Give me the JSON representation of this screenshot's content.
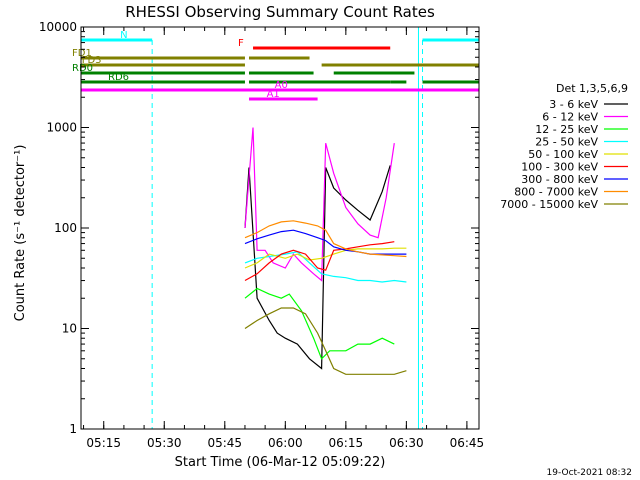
{
  "chart_data": {
    "type": "line",
    "title": "RHESSI Observing Summary Count Rates",
    "xlabel": "Start Time (06-Mar-12 05:09:22)",
    "ylabel": "Count Rate (s⁻¹ detector⁻¹)",
    "x_range": [
      "05:09:22",
      "06:48:00"
    ],
    "x_ticks": [
      "05:15",
      "05:30",
      "05:45",
      "06:00",
      "06:15",
      "06:30",
      "06:45"
    ],
    "y_scale": "log",
    "ylim": [
      1,
      10000
    ],
    "y_ticks": [
      "1",
      "10",
      "100",
      "1000",
      "10000"
    ],
    "grid": false,
    "legend_title": "Det 1,3,5,6,9",
    "legend_position": "right",
    "footer": "19-Oct-2021 08:32",
    "series": [
      {
        "name": "3 - 6 keV",
        "color": "#000000",
        "points": [
          [
            "05:50",
            100
          ],
          [
            "05:51",
            400
          ],
          [
            "05:53",
            20
          ],
          [
            "05:56",
            12
          ],
          [
            "05:58",
            9
          ],
          [
            "06:00",
            8
          ],
          [
            "06:03",
            7
          ],
          [
            "06:06",
            5
          ],
          [
            "06:09",
            4
          ],
          [
            "06:10",
            400
          ],
          [
            "06:12",
            250
          ],
          [
            "06:15",
            190
          ],
          [
            "06:18",
            150
          ],
          [
            "06:21",
            120
          ],
          [
            "06:24",
            230
          ],
          [
            "06:26",
            420
          ]
        ]
      },
      {
        "name": "6 - 12 keV",
        "color": "#ff00ff",
        "points": [
          [
            "05:50",
            100
          ],
          [
            "05:52",
            1000
          ],
          [
            "05:53",
            60
          ],
          [
            "05:55",
            60
          ],
          [
            "05:57",
            45
          ],
          [
            "06:00",
            40
          ],
          [
            "06:02",
            55
          ],
          [
            "06:04",
            45
          ],
          [
            "06:07",
            35
          ],
          [
            "06:09",
            30
          ],
          [
            "06:10",
            700
          ],
          [
            "06:12",
            350
          ],
          [
            "06:15",
            160
          ],
          [
            "06:18",
            110
          ],
          [
            "06:21",
            85
          ],
          [
            "06:23",
            80
          ],
          [
            "06:25",
            200
          ],
          [
            "06:27",
            700
          ]
        ]
      },
      {
        "name": "12 - 25 keV",
        "color": "#00ff00",
        "points": [
          [
            "05:50",
            20
          ],
          [
            "05:53",
            25
          ],
          [
            "05:56",
            22
          ],
          [
            "05:59",
            20
          ],
          [
            "06:01",
            22
          ],
          [
            "06:04",
            15
          ],
          [
            "06:07",
            8
          ],
          [
            "06:09",
            5
          ],
          [
            "06:11",
            6
          ],
          [
            "06:15",
            6
          ],
          [
            "06:18",
            7
          ],
          [
            "06:21",
            7
          ],
          [
            "06:24",
            8
          ],
          [
            "06:27",
            7
          ]
        ]
      },
      {
        "name": "25 - 50 keV",
        "color": "#00ffff",
        "points": [
          [
            "05:50",
            45
          ],
          [
            "05:53",
            50
          ],
          [
            "05:56",
            52
          ],
          [
            "06:00",
            55
          ],
          [
            "06:03",
            58
          ],
          [
            "06:06",
            45
          ],
          [
            "06:09",
            35
          ],
          [
            "06:12",
            33
          ],
          [
            "06:15",
            32
          ],
          [
            "06:18",
            30
          ],
          [
            "06:21",
            30
          ],
          [
            "06:24",
            29
          ],
          [
            "06:27",
            30
          ],
          [
            "06:30",
            29
          ]
        ]
      },
      {
        "name": "50 - 100 keV",
        "color": "#e0e000",
        "points": [
          [
            "05:50",
            40
          ],
          [
            "05:53",
            45
          ],
          [
            "05:56",
            55
          ],
          [
            "06:00",
            50
          ],
          [
            "06:03",
            55
          ],
          [
            "06:06",
            48
          ],
          [
            "06:09",
            50
          ],
          [
            "06:12",
            55
          ],
          [
            "06:15",
            60
          ],
          [
            "06:18",
            62
          ],
          [
            "06:21",
            62
          ],
          [
            "06:24",
            62
          ],
          [
            "06:27",
            63
          ],
          [
            "06:30",
            63
          ]
        ]
      },
      {
        "name": "100 - 300 keV",
        "color": "#ff0000",
        "points": [
          [
            "05:50",
            30
          ],
          [
            "05:53",
            35
          ],
          [
            "05:56",
            45
          ],
          [
            "05:59",
            55
          ],
          [
            "06:02",
            60
          ],
          [
            "06:05",
            55
          ],
          [
            "06:08",
            40
          ],
          [
            "06:10",
            38
          ],
          [
            "06:12",
            60
          ],
          [
            "06:15",
            62
          ],
          [
            "06:18",
            65
          ],
          [
            "06:21",
            68
          ],
          [
            "06:24",
            70
          ],
          [
            "06:27",
            73
          ]
        ]
      },
      {
        "name": "300 - 800 keV",
        "color": "#0000ff",
        "points": [
          [
            "05:50",
            70
          ],
          [
            "05:53",
            78
          ],
          [
            "05:56",
            85
          ],
          [
            "05:59",
            92
          ],
          [
            "06:02",
            95
          ],
          [
            "06:05",
            88
          ],
          [
            "06:08",
            80
          ],
          [
            "06:10",
            75
          ],
          [
            "06:12",
            65
          ],
          [
            "06:15",
            60
          ],
          [
            "06:18",
            58
          ],
          [
            "06:21",
            55
          ],
          [
            "06:24",
            55
          ],
          [
            "06:27",
            55
          ],
          [
            "06:30",
            55
          ]
        ]
      },
      {
        "name": "800 - 7000 keV",
        "color": "#ff8c00",
        "points": [
          [
            "05:50",
            80
          ],
          [
            "05:53",
            90
          ],
          [
            "05:56",
            105
          ],
          [
            "05:59",
            115
          ],
          [
            "06:02",
            118
          ],
          [
            "06:05",
            112
          ],
          [
            "06:08",
            105
          ],
          [
            "06:10",
            95
          ],
          [
            "06:12",
            70
          ],
          [
            "06:15",
            62
          ],
          [
            "06:18",
            58
          ],
          [
            "06:21",
            55
          ],
          [
            "06:24",
            54
          ],
          [
            "06:27",
            53
          ],
          [
            "06:30",
            52
          ]
        ]
      },
      {
        "name": "7000 - 15000 keV",
        "color": "#808000",
        "points": [
          [
            "05:50",
            10
          ],
          [
            "05:53",
            12
          ],
          [
            "05:56",
            14
          ],
          [
            "05:59",
            16
          ],
          [
            "06:02",
            16
          ],
          [
            "06:05",
            14
          ],
          [
            "06:08",
            9
          ],
          [
            "06:10",
            6
          ],
          [
            "06:12",
            4
          ],
          [
            "06:15",
            3.5
          ],
          [
            "06:18",
            3.5
          ],
          [
            "06:21",
            3.5
          ],
          [
            "06:24",
            3.5
          ],
          [
            "06:27",
            3.5
          ],
          [
            "06:30",
            3.8
          ]
        ]
      }
    ],
    "state_bars": [
      {
        "label": "N",
        "color": "#00ffff",
        "row": 0,
        "segments": [
          [
            "05:09:22",
            "05:27"
          ],
          [
            "06:34",
            "06:48"
          ]
        ]
      },
      {
        "label": "F",
        "color": "#ff0000",
        "row": 1,
        "segments": [
          [
            "05:52",
            "06:26"
          ]
        ]
      },
      {
        "label": "FD1",
        "color": "#808000",
        "row": 2,
        "segments": [
          [
            "05:09:22",
            "05:50"
          ],
          [
            "05:51",
            "06:06"
          ]
        ]
      },
      {
        "label": "FD3",
        "color": "#808000",
        "row": 3,
        "segments": [
          [
            "05:09:22",
            "05:50"
          ],
          [
            "06:09",
            "06:48"
          ]
        ]
      },
      {
        "label": "RD0",
        "color": "#008000",
        "row": 4,
        "segments": [
          [
            "05:09:22",
            "05:50"
          ],
          [
            "05:51",
            "06:07"
          ],
          [
            "06:12",
            "06:32"
          ]
        ]
      },
      {
        "label": "RD6",
        "color": "#008000",
        "row": 5,
        "segments": [
          [
            "05:09:22",
            "05:50"
          ],
          [
            "05:51",
            "06:26"
          ],
          [
            "06:26",
            "06:30"
          ],
          [
            "06:34",
            "06:48"
          ]
        ]
      },
      {
        "label": "A0",
        "color": "#ff00ff",
        "row": 6,
        "segments": [
          [
            "05:09:22",
            "06:48"
          ]
        ]
      },
      {
        "label": "A1",
        "color": "#ff00ff",
        "row": 7,
        "segments": [
          [
            "05:51",
            "06:08"
          ]
        ]
      }
    ]
  }
}
